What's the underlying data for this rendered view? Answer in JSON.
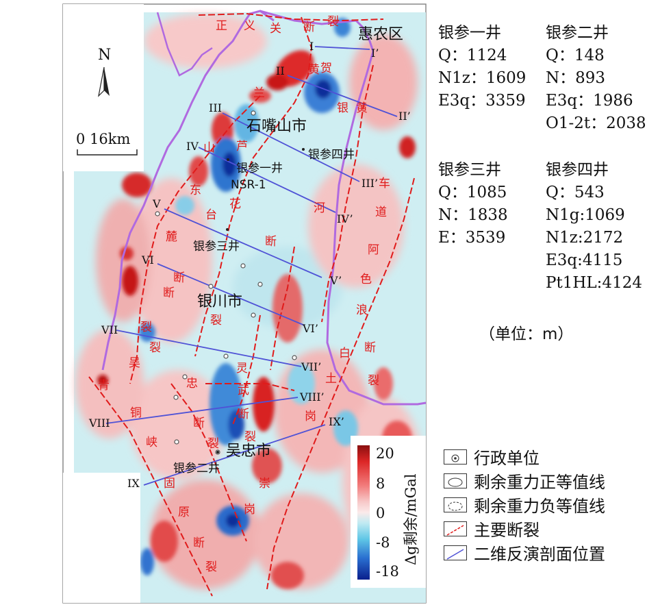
{
  "map": {
    "north_label": "N",
    "scale_label": "0  16km",
    "cities": [
      "惠农区",
      "石嘴山市",
      "银川市",
      "吴忠市"
    ],
    "wells": [
      "银参一井",
      "NSR-1",
      "银参二井",
      "银参三井",
      "银参四井"
    ],
    "sections": [
      "I",
      "I’",
      "II",
      "II’",
      "III",
      "III’",
      "IV",
      "IV’",
      "V",
      "V’",
      "VI",
      "VI’",
      "VII",
      "VII’",
      "VIII",
      "VIII’",
      "IX",
      "IX’"
    ],
    "fault_chars": [
      "正",
      "义",
      "关",
      "断",
      "裂",
      "黄",
      "河",
      "断",
      "裂",
      "银",
      "黄",
      "车",
      "道",
      "阿",
      "色",
      "浪",
      "断",
      "裂",
      "白",
      "土",
      "岗",
      "贺",
      "兰",
      "山",
      "东",
      "麓",
      "断",
      "裂",
      "芦",
      "花",
      "台",
      "断",
      "裂",
      "灵",
      "武",
      "断",
      "裂",
      "青",
      "铜",
      "峡",
      "固",
      "原",
      "断",
      "裂",
      "吴",
      "忠",
      "断",
      "裂",
      "崇",
      "岗"
    ]
  },
  "colorbar": {
    "ticks": [
      "20",
      "8",
      "0",
      "-8",
      "-18"
    ],
    "label": "Δg剩余/mGal"
  },
  "wells_info": [
    {
      "name": "银参一井",
      "lines": [
        "Q：1124",
        "N1z：1609",
        "E3q：3359"
      ]
    },
    {
      "name": "银参二井",
      "lines": [
        "Q：148",
        "N：893",
        "E3q：1986",
        "O1-2t：2038"
      ]
    },
    {
      "name": "银参三井",
      "lines": [
        "Q：1085",
        "N：1838",
        "E：3539"
      ]
    },
    {
      "name": "银参四井",
      "lines": [
        "Q：543",
        "N1g:1069",
        "N1z:2172",
        "E3q:4115",
        "Pt1HL:4124"
      ]
    }
  ],
  "unit": "（单位：m）",
  "legend": [
    {
      "label": "行政单位",
      "icon": "admin-unit-icon"
    },
    {
      "label": "剩余重力正等值线",
      "icon": "positive-contour-icon"
    },
    {
      "label": "剩余重力负等值线",
      "icon": "negative-contour-icon"
    },
    {
      "label": "主要断裂",
      "icon": "main-fault-icon"
    },
    {
      "label": "二维反演剖面位置",
      "icon": "profile-line-icon"
    }
  ],
  "colors": {
    "positive": "#d81e1e",
    "negative": "#1b5fc4",
    "fault": "#e01b1b",
    "border": "#b06ae0",
    "profile": "#4f52d6"
  }
}
